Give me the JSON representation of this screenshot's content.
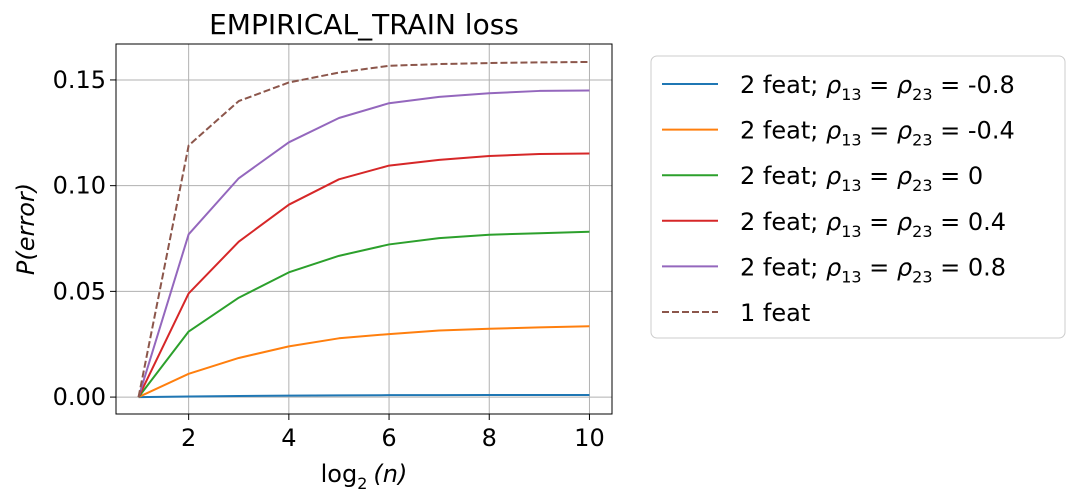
{
  "chart_data": {
    "type": "line",
    "title": "EMPIRICAL_TRAIN loss",
    "xlabel": {
      "prefix": "log",
      "sub": "2",
      "suffix": "(n)"
    },
    "ylabel": "P(error)",
    "xlim": [
      0.55,
      10.45
    ],
    "ylim": [
      -0.008,
      0.167
    ],
    "xticks": [
      2,
      4,
      6,
      8,
      10
    ],
    "yticks": [
      0.0,
      0.05,
      0.1,
      0.15
    ],
    "ytick_labels": [
      "0.00",
      "0.05",
      "0.10",
      "0.15"
    ],
    "grid": true,
    "legend_position": "outside-right",
    "x": [
      1,
      2,
      3,
      4,
      5,
      6,
      7,
      8,
      9,
      10
    ],
    "series": [
      {
        "name": "2 feat; ρ13 = ρ23 = -0.8",
        "legend": {
          "pre": "2 feat; ",
          "r1": "13",
          "r2": "23",
          "value": "-0.8"
        },
        "color": "#1f77b4",
        "dash": "solid",
        "values": [
          0.0,
          0.0003,
          0.0005,
          0.0007,
          0.0008,
          0.0009,
          0.0009,
          0.001,
          0.001,
          0.001
        ]
      },
      {
        "name": "2 feat; ρ13 = ρ23 = -0.4",
        "legend": {
          "pre": "2 feat; ",
          "r1": "13",
          "r2": "23",
          "value": "-0.4"
        },
        "color": "#ff7f0e",
        "dash": "solid",
        "values": [
          0.0,
          0.011,
          0.0185,
          0.024,
          0.0278,
          0.0298,
          0.0315,
          0.0323,
          0.033,
          0.0335
        ]
      },
      {
        "name": "2 feat; ρ13 = ρ23 = 0",
        "legend": {
          "pre": "2 feat; ",
          "r1": "13",
          "r2": "23",
          "value": "0"
        },
        "color": "#2ca02c",
        "dash": "solid",
        "values": [
          0.0,
          0.031,
          0.047,
          0.059,
          0.0668,
          0.0722,
          0.0752,
          0.0768,
          0.0775,
          0.0782
        ]
      },
      {
        "name": "2 feat; ρ13 = ρ23 = 0.4",
        "legend": {
          "pre": "2 feat; ",
          "r1": "13",
          "r2": "23",
          "value": "0.4"
        },
        "color": "#d62728",
        "dash": "solid",
        "values": [
          0.0,
          0.049,
          0.0735,
          0.091,
          0.103,
          0.1095,
          0.1122,
          0.114,
          0.115,
          0.1152
        ]
      },
      {
        "name": "2 feat; ρ13 = ρ23 = 0.8",
        "legend": {
          "pre": "2 feat; ",
          "r1": "13",
          "r2": "23",
          "value": "0.8"
        },
        "color": "#9467bd",
        "dash": "solid",
        "values": [
          0.0,
          0.077,
          0.1035,
          0.1205,
          0.132,
          0.139,
          0.142,
          0.1437,
          0.1448,
          0.145
        ]
      },
      {
        "name": "1 feat",
        "legend": {
          "pre": "1 feat"
        },
        "color": "#8c564b",
        "dash": "dashed",
        "values": [
          0.0,
          0.119,
          0.14,
          0.1488,
          0.1535,
          0.1567,
          0.1575,
          0.158,
          0.1583,
          0.1585
        ]
      }
    ]
  }
}
